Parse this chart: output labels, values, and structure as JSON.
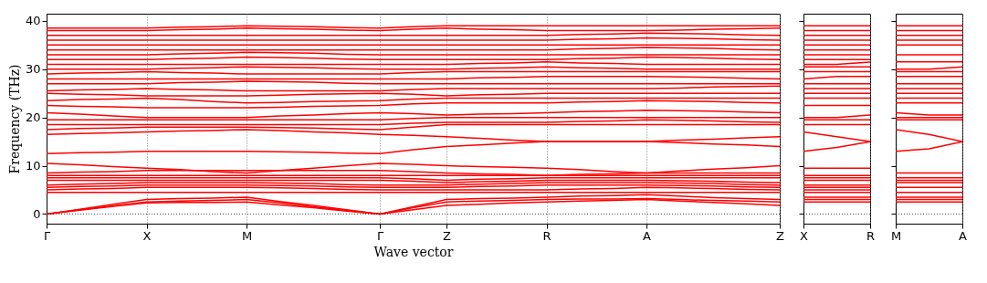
{
  "chart_data": [
    {
      "type": "line",
      "xlabel": "Wave vector",
      "ylabel": "Frequency (THz)",
      "categories": [
        "Γ",
        null,
        null,
        "X",
        null,
        null,
        "M",
        null,
        null,
        null,
        "Γ",
        null,
        "Z",
        null,
        null,
        "R",
        null,
        null,
        "A",
        null,
        null,
        null,
        "Z"
      ],
      "ylim": [
        -2,
        41.5
      ],
      "yticks": [
        0,
        10,
        20,
        30,
        40
      ],
      "grid": "x",
      "ref_lines": [
        {
          "axis": "y",
          "value": 0,
          "color": "#000000",
          "line_style": "dotted"
        }
      ],
      "series": [
        {
          "color": "#ff0000",
          "values": [
            0,
            0.8,
            1.6,
            2.3,
            2.4,
            2.4,
            2.5,
            1.9,
            1.3,
            0.6,
            0,
            0.9,
            1.8,
            2,
            2.3,
            2.5,
            2.7,
            2.8,
            3,
            2.7,
            2.4,
            2.1,
            1.8
          ]
        },
        {
          "color": "#ff0000",
          "values": [
            0,
            0.9,
            1.7,
            2.5,
            2.7,
            2.8,
            3,
            2.3,
            1.5,
            0.8,
            0,
            1.3,
            2.5,
            2.7,
            2.8,
            3,
            3.1,
            3.1,
            3.2,
            3,
            2.8,
            2.7,
            2.5
          ]
        },
        {
          "color": "#ff0000",
          "values": [
            0,
            1,
            2,
            3,
            3.2,
            3.3,
            3.5,
            2.6,
            1.8,
            0.9,
            0,
            1.5,
            3,
            3.2,
            3.3,
            3.5,
            3.7,
            3.8,
            4,
            3.7,
            3.4,
            3.2,
            3
          ]
        },
        {
          "color": "#ff0000",
          "values": [
            4.5,
            4.5,
            4.5,
            4.5,
            4.5,
            4.5,
            4.5,
            4.5,
            4.5,
            4.5,
            4.5,
            4.5,
            4.5,
            4.5,
            4.5,
            4.5,
            4.5,
            4.5,
            4.5,
            4.5,
            4.5,
            4.5,
            4.5
          ]
        },
        {
          "color": "#ff0000",
          "values": [
            5,
            5.2,
            5.3,
            5.5,
            5.5,
            5.5,
            5.5,
            5.4,
            5.3,
            5.1,
            5,
            5,
            5,
            5,
            5,
            5,
            5.2,
            5.3,
            5.5,
            5.4,
            5.3,
            5.1,
            5
          ]
        },
        {
          "color": "#ff0000",
          "values": [
            5.5,
            5.7,
            5.8,
            6,
            6,
            6,
            6,
            5.9,
            5.8,
            5.6,
            5.5,
            5.5,
            5.5,
            5.7,
            5.8,
            6,
            6,
            6,
            6,
            5.9,
            5.8,
            5.6,
            5.5
          ]
        },
        {
          "color": "#ff0000",
          "values": [
            6,
            6.2,
            6.3,
            6.5,
            6.5,
            6.5,
            6.5,
            6.4,
            6.3,
            6.1,
            6,
            6,
            6,
            6.2,
            6.3,
            6.5,
            6.5,
            6.5,
            6.5,
            6.4,
            6.3,
            6.1,
            6
          ]
        },
        {
          "color": "#ff0000",
          "values": [
            7,
            7,
            7,
            7,
            7,
            7,
            7,
            7,
            7,
            7,
            7,
            6.8,
            6.5,
            6.7,
            6.8,
            7,
            7,
            7,
            7,
            6.9,
            6.8,
            6.6,
            6.5
          ]
        },
        {
          "color": "#ff0000",
          "values": [
            7.5,
            7.5,
            7.5,
            7.5,
            7.5,
            7.5,
            7.5,
            7.5,
            7.5,
            7.5,
            7.5,
            7.3,
            7,
            7.2,
            7.3,
            7.5,
            7.5,
            7.5,
            7.5,
            7.5,
            7.5,
            7.5,
            7.5
          ]
        },
        {
          "color": "#ff0000",
          "values": [
            8,
            8,
            8,
            8,
            8,
            8,
            8,
            8,
            8,
            8,
            8,
            8,
            8,
            8,
            8,
            8,
            8,
            8,
            8,
            8,
            8,
            8,
            8
          ]
        },
        {
          "color": "#ff0000",
          "values": [
            8.5,
            8.7,
            8.8,
            9,
            9,
            9,
            9,
            9,
            9,
            9,
            9,
            8.8,
            8.5,
            8.3,
            8.2,
            8,
            8.2,
            8.3,
            8.5,
            8.5,
            8.5,
            8.5,
            8.5
          ]
        },
        {
          "color": "#ff0000",
          "values": [
            10.5,
            10.2,
            9.8,
            9.5,
            9.2,
            8.8,
            8.5,
            9,
            9.5,
            10,
            10.5,
            10.3,
            10,
            9.8,
            9.7,
            9.5,
            9.2,
            8.8,
            8.5,
            8.9,
            9.3,
            9.6,
            10
          ]
        },
        {
          "color": "#ff0000",
          "values": [
            12.5,
            12.7,
            12.8,
            13,
            13,
            13,
            13,
            12.9,
            12.8,
            12.6,
            12.5,
            13.3,
            14,
            14.3,
            14.7,
            15,
            15,
            15,
            15,
            14.8,
            14.5,
            14.3,
            14
          ]
        },
        {
          "color": "#ff0000",
          "values": [
            16.5,
            16.7,
            16.8,
            17,
            17.2,
            17.3,
            17.5,
            17.3,
            17,
            16.8,
            16.5,
            16.3,
            16,
            15.7,
            15.3,
            15,
            15,
            15,
            15,
            15.3,
            15.5,
            15.8,
            16
          ]
        },
        {
          "color": "#ff0000",
          "values": [
            17.5,
            17.7,
            17.8,
            18,
            18,
            18,
            18,
            17.9,
            17.8,
            17.6,
            17.5,
            18,
            18.5,
            18.5,
            18.5,
            18.5,
            18.5,
            18.5,
            18.5,
            18.5,
            18.5,
            18.5,
            18.5
          ]
        },
        {
          "color": "#ff0000",
          "values": [
            18.5,
            18.5,
            18.5,
            18.5,
            18.5,
            18.5,
            18.5,
            18.5,
            18.5,
            18.5,
            18.5,
            18.8,
            19,
            19,
            19,
            19,
            19.2,
            19.3,
            19.5,
            19.4,
            19.3,
            19.1,
            19
          ]
        },
        {
          "color": "#ff0000",
          "values": [
            19.5,
            19.5,
            19.5,
            19.5,
            19.5,
            19.5,
            19.5,
            19.5,
            19.5,
            19.5,
            19.5,
            19.8,
            20,
            20,
            20,
            20,
            20,
            20,
            20,
            20,
            20,
            20,
            20
          ]
        },
        {
          "color": "#ff0000",
          "values": [
            21,
            20.7,
            20.3,
            20,
            20,
            20,
            20,
            20.3,
            20.5,
            20.8,
            21,
            20.8,
            20.5,
            20.7,
            20.8,
            21,
            21.2,
            21.3,
            21.5,
            21.4,
            21.3,
            21.1,
            21
          ]
        },
        {
          "color": "#ff0000",
          "values": [
            22.5,
            22.3,
            22.2,
            22,
            22,
            22,
            22,
            22.1,
            22.3,
            22.4,
            22.5,
            22.8,
            23,
            23,
            23,
            23,
            23.2,
            23.3,
            23.5,
            23.4,
            23.3,
            23.1,
            23
          ]
        },
        {
          "color": "#ff0000",
          "values": [
            23.5,
            23.7,
            23.8,
            24,
            23.7,
            23.3,
            23,
            23.1,
            23.3,
            23.4,
            23.5,
            23.8,
            24,
            24,
            24,
            24,
            24,
            24,
            24,
            24,
            24,
            24,
            24
          ]
        },
        {
          "color": "#ff0000",
          "values": [
            25,
            24.8,
            24.7,
            24.5,
            24.5,
            24.5,
            24.5,
            24.6,
            24.8,
            24.9,
            25,
            24.8,
            24.5,
            24.7,
            24.8,
            25,
            25,
            25,
            25,
            25,
            25,
            25,
            25
          ]
        },
        {
          "color": "#ff0000",
          "values": [
            25.5,
            25.7,
            25.8,
            26,
            25.8,
            25.7,
            25.5,
            25.5,
            25.5,
            25.5,
            25.5,
            25.8,
            26,
            26,
            26,
            26,
            26,
            26,
            26,
            26.1,
            26.3,
            26.4,
            26.5
          ]
        },
        {
          "color": "#ff0000",
          "values": [
            27,
            27,
            27,
            27,
            27.2,
            27.3,
            27.5,
            27.4,
            27.3,
            27.1,
            27,
            27,
            27,
            27,
            27,
            27,
            27,
            27,
            27,
            27,
            27,
            27,
            27
          ]
        },
        {
          "color": "#ff0000",
          "values": [
            28,
            28,
            28,
            28,
            28,
            28,
            28,
            28,
            28,
            28,
            28,
            28,
            28,
            28.2,
            28.3,
            28.5,
            28.5,
            28.5,
            28.5,
            28.4,
            28.3,
            28.1,
            28
          ]
        },
        {
          "color": "#ff0000",
          "values": [
            29,
            29.2,
            29.3,
            29.5,
            29.3,
            29.2,
            29,
            29,
            29,
            29,
            29,
            29.3,
            29.5,
            29.5,
            29.5,
            29.5,
            29.5,
            29.5,
            29.5,
            29.5,
            29.5,
            29.5,
            29.5
          ]
        },
        {
          "color": "#ff0000",
          "values": [
            30,
            30,
            30,
            30,
            30.2,
            30.3,
            30.5,
            30.4,
            30.3,
            30.1,
            30,
            30,
            30,
            30.2,
            30.3,
            30.5,
            30.3,
            30.2,
            30,
            30,
            30,
            30,
            30
          ]
        },
        {
          "color": "#ff0000",
          "values": [
            31,
            31,
            31,
            31,
            31,
            31,
            31,
            31,
            31,
            31,
            31,
            31,
            31,
            31.2,
            31.3,
            31.5,
            31.3,
            31.2,
            31,
            31,
            31,
            31,
            31
          ]
        },
        {
          "color": "#ff0000",
          "values": [
            32,
            32,
            32,
            32,
            32.2,
            32.3,
            32.5,
            32.4,
            32.3,
            32.1,
            32,
            32,
            32,
            32,
            32,
            32,
            32.2,
            32.3,
            32.5,
            32.4,
            32.3,
            32.1,
            32
          ]
        },
        {
          "color": "#ff0000",
          "values": [
            33,
            33,
            33,
            33,
            33.2,
            33.3,
            33.5,
            33.4,
            33.3,
            33.1,
            33,
            33,
            33,
            33,
            33,
            33,
            33,
            33,
            33,
            33,
            33,
            33,
            33
          ]
        },
        {
          "color": "#ff0000",
          "values": [
            34,
            34,
            34,
            34,
            34,
            34,
            34,
            34,
            34,
            34,
            34,
            34,
            34,
            34,
            34,
            34,
            34.2,
            34.3,
            34.5,
            34.4,
            34.3,
            34.1,
            34
          ]
        },
        {
          "color": "#ff0000",
          "values": [
            35,
            35,
            35,
            35,
            35,
            35,
            35,
            35,
            35,
            35,
            35,
            35,
            35,
            35,
            35,
            35,
            35,
            35,
            35,
            35,
            35,
            35,
            35
          ]
        },
        {
          "color": "#ff0000",
          "values": [
            36,
            36,
            36,
            36,
            36,
            36,
            36,
            36,
            36,
            36,
            36,
            36,
            36,
            36,
            36,
            36,
            36.2,
            36.3,
            36.5,
            36.4,
            36.3,
            36.1,
            36
          ]
        },
        {
          "color": "#ff0000",
          "values": [
            37,
            37,
            37,
            37,
            37,
            37,
            37,
            37,
            37,
            37,
            37,
            37,
            37,
            37,
            37,
            37,
            37.2,
            37.3,
            37.5,
            37.4,
            37.3,
            37.1,
            37
          ]
        },
        {
          "color": "#ff0000",
          "values": [
            38,
            38,
            38,
            38,
            38.2,
            38.3,
            38.5,
            38.4,
            38.3,
            38.1,
            38,
            38.3,
            38.5,
            38.3,
            38.2,
            38,
            38,
            38,
            38,
            38.1,
            38.3,
            38.4,
            38.5
          ]
        },
        {
          "color": "#ff0000",
          "values": [
            38.5,
            38.5,
            38.5,
            38.5,
            38.7,
            38.8,
            39,
            38.9,
            38.8,
            38.6,
            38.5,
            38.8,
            39,
            39,
            39,
            39,
            39,
            39,
            39,
            39,
            39,
            39,
            39
          ]
        }
      ]
    },
    {
      "type": "line",
      "categories": [
        "X",
        null,
        "R"
      ],
      "ylim": [
        -2,
        41.5
      ],
      "yticks": [
        0,
        10,
        20,
        30,
        40
      ],
      "tick_labels": "x",
      "grid": "x",
      "ref_lines": [
        {
          "axis": "y",
          "value": 0,
          "color": "#000000",
          "line_style": "dotted"
        }
      ],
      "series": [
        {
          "color": "#ff0000",
          "values": [
            2.5,
            2.5,
            2.5
          ]
        },
        {
          "color": "#ff0000",
          "values": [
            3,
            3,
            3
          ]
        },
        {
          "color": "#ff0000",
          "values": [
            3.5,
            3.5,
            3.5
          ]
        },
        {
          "color": "#ff0000",
          "values": [
            4.5,
            4.5,
            4.5
          ]
        },
        {
          "color": "#ff0000",
          "values": [
            5,
            5,
            5
          ]
        },
        {
          "color": "#ff0000",
          "values": [
            5.5,
            5.5,
            5.5
          ]
        },
        {
          "color": "#ff0000",
          "values": [
            6,
            6,
            6
          ]
        },
        {
          "color": "#ff0000",
          "values": [
            7,
            7,
            7
          ]
        },
        {
          "color": "#ff0000",
          "values": [
            7.5,
            7.5,
            7.5
          ]
        },
        {
          "color": "#ff0000",
          "values": [
            8,
            8,
            8
          ]
        },
        {
          "color": "#ff0000",
          "values": [
            9.5,
            9.5,
            9.5
          ]
        },
        {
          "color": "#ff0000",
          "values": [
            13,
            13.8,
            15
          ]
        },
        {
          "color": "#ff0000",
          "values": [
            17,
            16,
            15
          ]
        },
        {
          "color": "#ff0000",
          "values": [
            18.5,
            18.5,
            18.5
          ]
        },
        {
          "color": "#ff0000",
          "values": [
            19.5,
            19.5,
            19.5
          ]
        },
        {
          "color": "#ff0000",
          "values": [
            20,
            20,
            20.5
          ]
        },
        {
          "color": "#ff0000",
          "values": [
            22.5,
            22.5,
            22.5
          ]
        },
        {
          "color": "#ff0000",
          "values": [
            24,
            24,
            24
          ]
        },
        {
          "color": "#ff0000",
          "values": [
            25,
            25,
            25
          ]
        },
        {
          "color": "#ff0000",
          "values": [
            26,
            26,
            26
          ]
        },
        {
          "color": "#ff0000",
          "values": [
            27,
            27,
            27
          ]
        },
        {
          "color": "#ff0000",
          "values": [
            28,
            28.5,
            28.5
          ]
        },
        {
          "color": "#ff0000",
          "values": [
            29.5,
            29.5,
            29.5
          ]
        },
        {
          "color": "#ff0000",
          "values": [
            30.5,
            30.5,
            30.5
          ]
        },
        {
          "color": "#ff0000",
          "values": [
            31,
            31,
            31.5
          ]
        },
        {
          "color": "#ff0000",
          "values": [
            32,
            32,
            32
          ]
        },
        {
          "color": "#ff0000",
          "values": [
            33,
            33,
            33
          ]
        },
        {
          "color": "#ff0000",
          "values": [
            34,
            34,
            34
          ]
        },
        {
          "color": "#ff0000",
          "values": [
            35,
            35,
            35
          ]
        },
        {
          "color": "#ff0000",
          "values": [
            36,
            36,
            36
          ]
        },
        {
          "color": "#ff0000",
          "values": [
            37,
            37,
            37
          ]
        },
        {
          "color": "#ff0000",
          "values": [
            38,
            38,
            38
          ]
        },
        {
          "color": "#ff0000",
          "values": [
            39,
            39,
            39
          ]
        }
      ]
    },
    {
      "type": "line",
      "categories": [
        "M",
        null,
        "A"
      ],
      "ylim": [
        -2,
        41.5
      ],
      "yticks": [
        0,
        10,
        20,
        30,
        40
      ],
      "tick_labels": "x",
      "grid": "x",
      "ref_lines": [
        {
          "axis": "y",
          "value": 0,
          "color": "#000000",
          "line_style": "dotted"
        }
      ],
      "series": [
        {
          "color": "#ff0000",
          "values": [
            2.5,
            2.5,
            2.5
          ]
        },
        {
          "color": "#ff0000",
          "values": [
            3,
            3,
            3
          ]
        },
        {
          "color": "#ff0000",
          "values": [
            3.5,
            3.5,
            3.5
          ]
        },
        {
          "color": "#ff0000",
          "values": [
            4.5,
            4.5,
            4.5
          ]
        },
        {
          "color": "#ff0000",
          "values": [
            5.5,
            5.5,
            5.5
          ]
        },
        {
          "color": "#ff0000",
          "values": [
            6.5,
            6.5,
            6.5
          ]
        },
        {
          "color": "#ff0000",
          "values": [
            7,
            7,
            7
          ]
        },
        {
          "color": "#ff0000",
          "values": [
            7.5,
            7.5,
            7.5
          ]
        },
        {
          "color": "#ff0000",
          "values": [
            8.5,
            8.5,
            8.5
          ]
        },
        {
          "color": "#ff0000",
          "values": [
            13,
            13.5,
            15
          ]
        },
        {
          "color": "#ff0000",
          "values": [
            17.5,
            16.5,
            15
          ]
        },
        {
          "color": "#ff0000",
          "values": [
            19.5,
            19.5,
            19.5
          ]
        },
        {
          "color": "#ff0000",
          "values": [
            20,
            20,
            20
          ]
        },
        {
          "color": "#ff0000",
          "values": [
            21,
            20.5,
            20.5
          ]
        },
        {
          "color": "#ff0000",
          "values": [
            23,
            23,
            23
          ]
        },
        {
          "color": "#ff0000",
          "values": [
            24,
            24,
            24
          ]
        },
        {
          "color": "#ff0000",
          "values": [
            25,
            25,
            25
          ]
        },
        {
          "color": "#ff0000",
          "values": [
            26,
            26,
            26
          ]
        },
        {
          "color": "#ff0000",
          "values": [
            27,
            27,
            27
          ]
        },
        {
          "color": "#ff0000",
          "values": [
            28.5,
            28.5,
            28.5
          ]
        },
        {
          "color": "#ff0000",
          "values": [
            29.5,
            29.5,
            29.5
          ]
        },
        {
          "color": "#ff0000",
          "values": [
            30,
            30,
            30.5
          ]
        },
        {
          "color": "#ff0000",
          "values": [
            31.5,
            31.5,
            31.5
          ]
        },
        {
          "color": "#ff0000",
          "values": [
            33,
            33,
            33
          ]
        },
        {
          "color": "#ff0000",
          "values": [
            35,
            35,
            35
          ]
        },
        {
          "color": "#ff0000",
          "values": [
            36,
            36,
            36
          ]
        },
        {
          "color": "#ff0000",
          "values": [
            37,
            37,
            37
          ]
        },
        {
          "color": "#ff0000",
          "values": [
            38,
            38,
            38
          ]
        },
        {
          "color": "#ff0000",
          "values": [
            39,
            39,
            39
          ]
        }
      ]
    }
  ]
}
